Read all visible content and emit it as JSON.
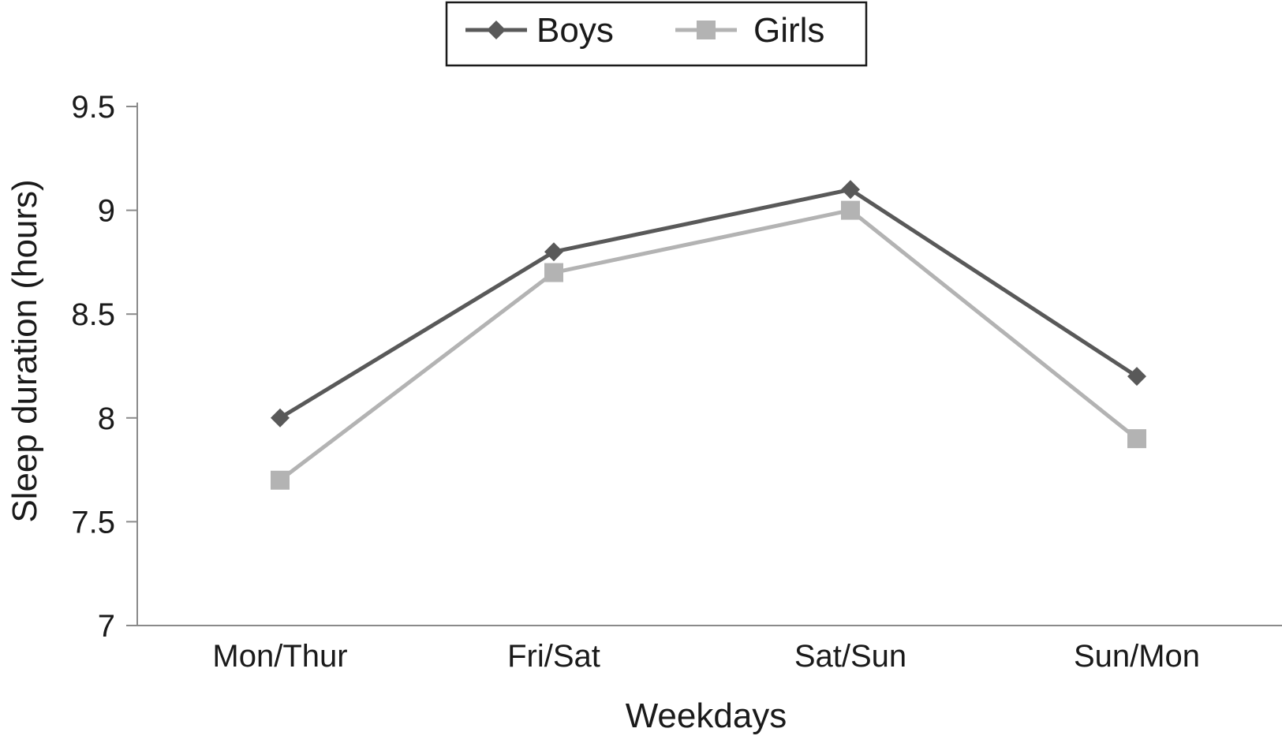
{
  "chart_data": {
    "type": "line",
    "categories": [
      "Mon/Thur",
      "Fri/Sat",
      "Sat/Sun",
      "Sun/Mon"
    ],
    "series": [
      {
        "name": "Boys",
        "values": [
          8.0,
          8.8,
          9.1,
          8.2
        ],
        "color": "#595959",
        "marker": "diamond"
      },
      {
        "name": "Girls",
        "values": [
          7.7,
          8.7,
          9.0,
          7.9
        ],
        "color": "#b3b3b3",
        "marker": "square"
      }
    ],
    "xlabel": "Weekdays",
    "ylabel": "Sleep duration (hours)",
    "ylim": [
      7,
      9.5
    ],
    "yticks": [
      "7",
      "7.5",
      "8",
      "8.5",
      "9",
      "9.5"
    ],
    "grid": false,
    "legend_position": "top-center"
  }
}
